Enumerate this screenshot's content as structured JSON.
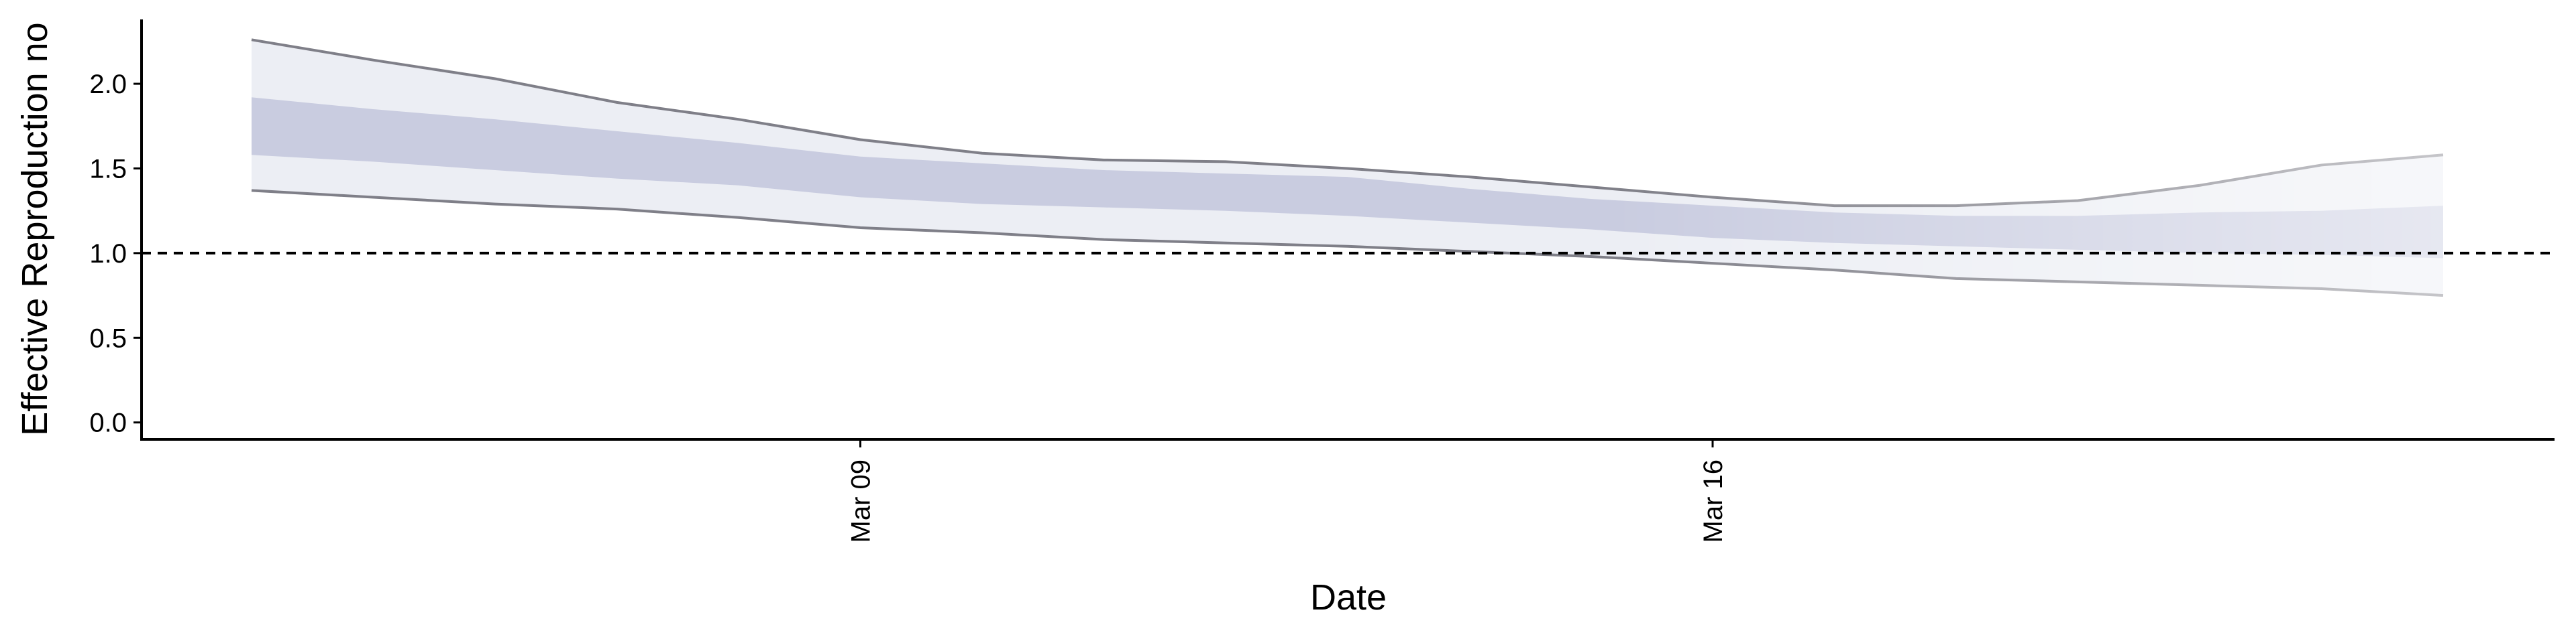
{
  "chart_data": {
    "type": "band",
    "xlabel": "Date",
    "ylabel": "Effective Reproduction no",
    "categories": [
      null,
      null,
      null,
      null,
      null,
      "Mar 09",
      null,
      null,
      null,
      null,
      null,
      null,
      "Mar 16",
      null,
      null,
      null,
      null,
      null,
      null
    ],
    "bands": [
      {
        "upper": [
          2.26,
          2.14,
          2.03,
          1.89,
          1.79,
          1.67,
          1.59,
          1.55,
          1.54,
          1.5,
          1.45,
          1.39,
          1.33,
          1.28,
          1.28,
          1.31,
          1.4,
          1.52,
          1.58
        ],
        "lower": [
          1.37,
          1.33,
          1.29,
          1.26,
          1.21,
          1.15,
          1.12,
          1.08,
          1.06,
          1.04,
          1.01,
          0.98,
          0.94,
          0.9,
          0.85,
          0.83,
          0.81,
          0.79,
          0.75
        ],
        "color": "#eceef4",
        "edge_color": "#7f7f88"
      },
      {
        "upper": [
          1.92,
          1.85,
          1.79,
          1.72,
          1.65,
          1.57,
          1.53,
          1.49,
          1.47,
          1.45,
          1.38,
          1.32,
          1.28,
          1.24,
          1.22,
          1.22,
          1.24,
          1.25,
          1.28
        ],
        "lower": [
          1.58,
          1.54,
          1.49,
          1.44,
          1.4,
          1.33,
          1.29,
          1.27,
          1.25,
          1.22,
          1.18,
          1.14,
          1.09,
          1.06,
          1.04,
          1.02,
          1.0,
          0.99,
          0.97
        ],
        "color": "#c9cce0"
      }
    ],
    "hline": 1.0,
    "ylim": [
      -0.1,
      2.38
    ],
    "yticks": [
      {
        "value": 0,
        "label": "0.0"
      },
      0.5,
      {
        "value": 1,
        "label": "1.0"
      },
      1.5,
      {
        "value": 2,
        "label": "2.0"
      }
    ]
  }
}
